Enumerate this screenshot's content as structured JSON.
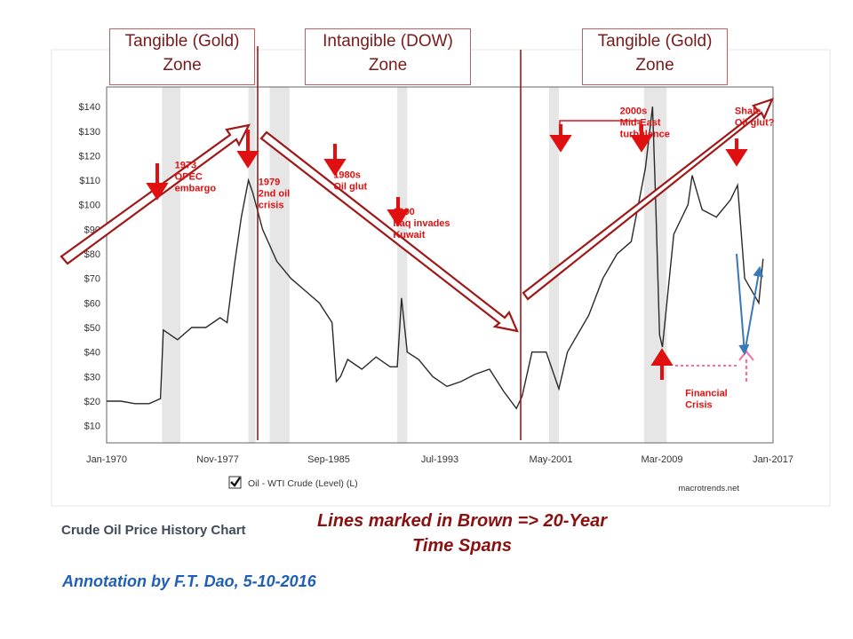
{
  "chart_data": {
    "type": "line",
    "title": "",
    "xlabel": "",
    "ylabel": "",
    "x_tick_labels": [
      "Jan-1970",
      "Nov-1977",
      "Sep-1985",
      "Jul-1993",
      "May-2001",
      "Mar-2009",
      "Jan-2017"
    ],
    "y_tick_labels": [
      "$10",
      "$20",
      "$30",
      "$40",
      "$50",
      "$60",
      "$70",
      "$80",
      "$90",
      "$100",
      "$110",
      "$120",
      "$130",
      "$140"
    ],
    "xlim": [
      1970.0,
      2017.0
    ],
    "ylim": [
      3,
      148
    ],
    "legend": {
      "label": "Oil - WTI Crude (Level) (L)",
      "placement": "bottom-left"
    },
    "source_label": "macrotrends.net",
    "recession_bands": [
      [
        1973.9,
        1975.2
      ],
      [
        1980.0,
        1980.5
      ],
      [
        1981.5,
        1982.9
      ],
      [
        1990.5,
        1991.2
      ],
      [
        2001.2,
        2001.9
      ],
      [
        2007.9,
        2009.5
      ]
    ],
    "series": [
      {
        "name": "Oil - WTI Crude (Level) (L)",
        "color": "#2a2a2a",
        "x": [
          1970.0,
          1971.0,
          1972.0,
          1973.0,
          1973.8,
          1974.0,
          1974.5,
          1975.0,
          1976.0,
          1977.0,
          1978.0,
          1978.5,
          1979.0,
          1979.5,
          1980.0,
          1980.3,
          1981.0,
          1982.0,
          1983.0,
          1984.0,
          1985.0,
          1985.9,
          1986.2,
          1986.5,
          1987.0,
          1988.0,
          1989.0,
          1990.0,
          1990.5,
          1990.8,
          1991.2,
          1992.0,
          1993.0,
          1994.0,
          1995.0,
          1996.0,
          1997.0,
          1998.0,
          1998.9,
          1999.3,
          2000.0,
          2001.0,
          2001.9,
          2002.5,
          2003.0,
          2004.0,
          2005.0,
          2006.0,
          2007.0,
          2007.5,
          2008.0,
          2008.5,
          2008.7,
          2009.0,
          2009.2,
          2010.0,
          2011.0,
          2011.3,
          2012.0,
          2013.0,
          2014.0,
          2014.5,
          2015.0,
          2016.0,
          2016.3
        ],
        "y": [
          20,
          20,
          19,
          19,
          21,
          49,
          47,
          45,
          50,
          50,
          54,
          52,
          75,
          95,
          110,
          105,
          90,
          77,
          70,
          65,
          60,
          52,
          28,
          30,
          37,
          33,
          38,
          34,
          34,
          62,
          40,
          37,
          30,
          26,
          28,
          31,
          33,
          24,
          17,
          22,
          40,
          40,
          25,
          40,
          45,
          55,
          70,
          80,
          85,
          100,
          115,
          140,
          105,
          47,
          42,
          88,
          100,
          112,
          98,
          95,
          102,
          108,
          70,
          60,
          78
        ]
      }
    ],
    "zones": [
      {
        "line1": "Tangible (Gold)",
        "line2": "Zone"
      },
      {
        "line1": "Intangible (DOW)",
        "line2": "Zone"
      },
      {
        "line1": "Tangible (Gold)",
        "line2": "Zone"
      }
    ],
    "annotations": [
      {
        "lines": [
          "1973",
          "OPEC",
          "embargo"
        ],
        "x": 1974.8,
        "y": 115
      },
      {
        "lines": [
          "1979",
          "2nd oil",
          "crisis"
        ],
        "x": 1980.7,
        "y": 108
      },
      {
        "lines": [
          "1980s",
          "Oil glut"
        ],
        "x": 1986.0,
        "y": 111
      },
      {
        "lines": [
          "1990",
          "Iraq invades",
          "Kuwait"
        ],
        "x": 1990.2,
        "y": 96
      },
      {
        "lines": [
          "2000s",
          "Mid-East",
          "turbulence"
        ],
        "x": 2006.2,
        "y": 137
      },
      {
        "lines": [
          "Shale",
          "Oil glut?"
        ],
        "x": 2014.3,
        "y": 137
      },
      {
        "lines": [
          "Financial",
          "Crisis"
        ],
        "x": 2010.8,
        "y": 22
      }
    ]
  },
  "footer": {
    "chart_name": "Crude Oil Price History Chart",
    "note_line1": "Lines marked in Brown => 20-Year",
    "note_line2": "Time Spans",
    "author": "Annotation by F.T. Dao, 5-10-2016"
  },
  "colors": {
    "zone_border": "#c06060",
    "annotation_red": "#e01010",
    "brown": "#8b1a1a",
    "arrow_blue": "#3a78b8",
    "pink": "#ff6aa0",
    "band_gray": "#e6e6e6"
  }
}
